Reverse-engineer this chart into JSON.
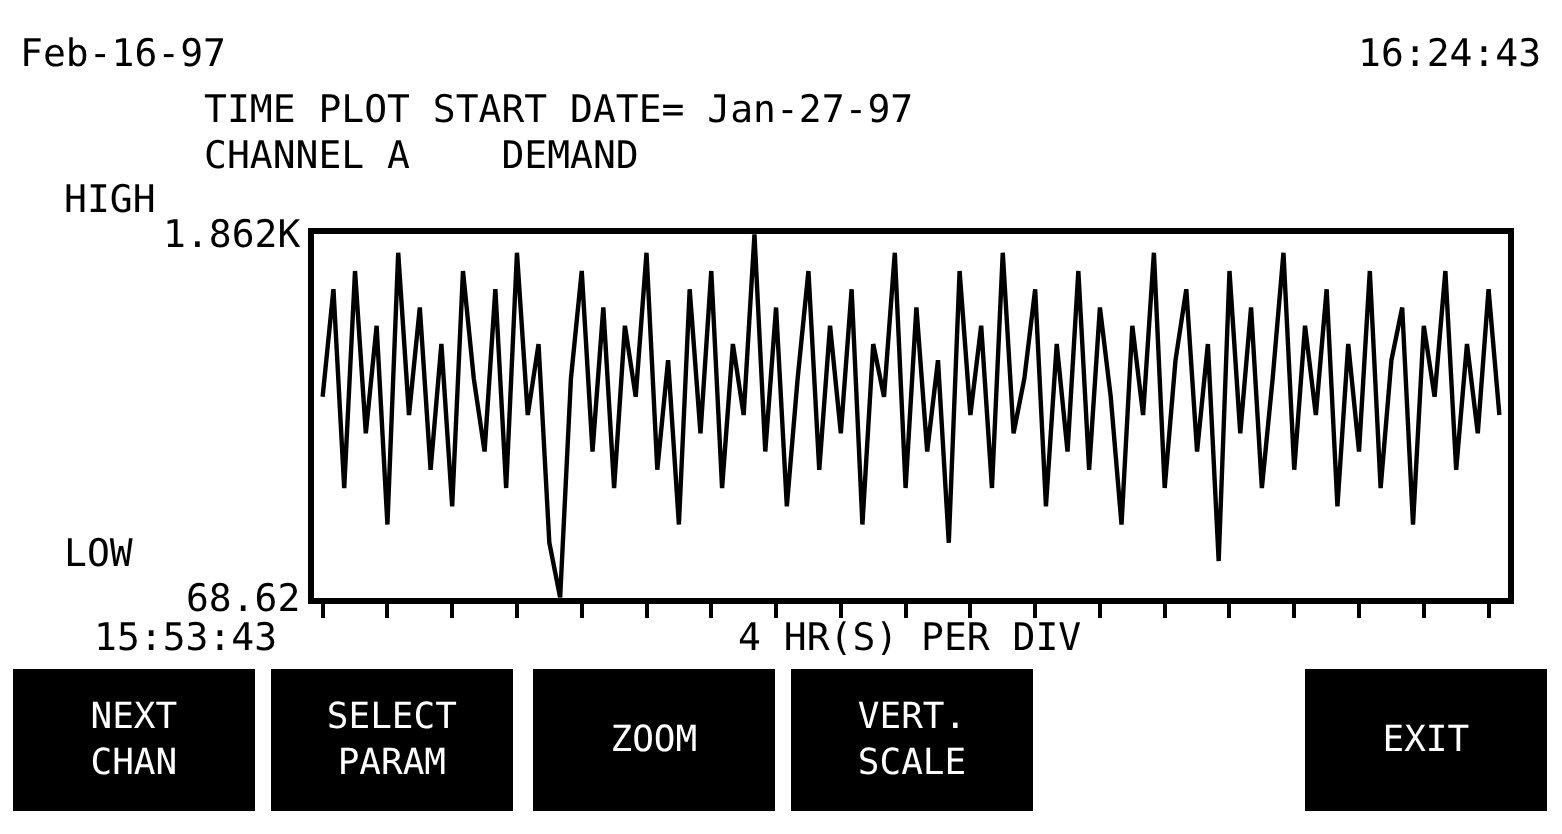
{
  "chart_data": {
    "type": "line",
    "tick_labels": "y",
    "ylim": [
      68.62,
      1862
    ],
    "yticks": [
      {
        "value": 1862,
        "label": "1.862K"
      },
      {
        "value": 68.62,
        "label": "68.62"
      }
    ],
    "title": "TIME PLOT START DATE= Jan-27-97",
    "subtitle": "CHANNEL A    DEMAND",
    "categories": [
      null,
      null,
      null,
      null,
      null,
      null,
      null,
      null,
      null,
      null,
      null,
      null,
      null,
      null,
      null,
      null,
      null,
      null,
      null,
      null,
      null,
      null,
      null,
      null,
      null,
      null,
      null,
      null,
      null,
      null,
      null,
      null,
      null,
      null,
      null,
      null,
      null,
      null,
      null,
      null,
      null,
      null,
      null,
      null,
      null,
      null,
      null,
      null,
      null,
      null,
      null,
      null,
      null,
      null,
      null,
      null,
      null,
      null,
      null,
      null,
      null,
      null,
      null,
      null,
      null,
      null,
      null,
      null,
      null,
      null,
      null,
      null,
      null,
      null,
      null,
      null,
      null,
      null,
      null,
      null,
      null,
      null,
      null,
      null,
      null,
      null,
      null,
      null,
      null,
      null,
      null,
      null,
      null,
      null,
      null,
      null,
      null,
      null,
      null,
      null,
      null,
      null,
      null,
      null,
      null,
      null,
      null,
      null,
      null,
      null
    ],
    "series": [
      {
        "color": "#000000",
        "values": [
          1060,
          1590,
          610,
          1680,
          880,
          1410,
          430,
          1770,
          970,
          1500,
          700,
          1320,
          520,
          1680,
          1150,
          790,
          1590,
          610,
          1770,
          970,
          1320,
          340,
          70,
          1150,
          1680,
          790,
          1500,
          610,
          1410,
          1060,
          1770,
          700,
          1240,
          430,
          1590,
          880,
          1680,
          610,
          1320,
          970,
          1860,
          790,
          1500,
          520,
          1150,
          1680,
          700,
          1410,
          880,
          1590,
          430,
          1320,
          1060,
          1770,
          610,
          1500,
          790,
          1240,
          340,
          1680,
          970,
          1410,
          610,
          1770,
          880,
          1150,
          1590,
          520,
          1320,
          790,
          1680,
          700,
          1500,
          1060,
          430,
          1410,
          970,
          1770,
          610,
          1240,
          1590,
          790,
          1320,
          250,
          1680,
          880,
          1500,
          610,
          1150,
          1770,
          700,
          1410,
          970,
          1590,
          520,
          1320,
          790,
          1680,
          610,
          1240,
          1500,
          430,
          1410,
          1060,
          1680,
          700,
          1320,
          880,
          1590,
          970
        ]
      }
    ],
    "annotations": [
      "Feb-16-97",
      "16:24:43",
      "HIGH",
      "LOW",
      "15:53:43",
      "4 HR(S) PER DIV",
      "NEXT\nCHAN",
      "SELECT\nPARAM",
      "ZOOM",
      "VERT.\nSCALE",
      "EXIT"
    ]
  }
}
